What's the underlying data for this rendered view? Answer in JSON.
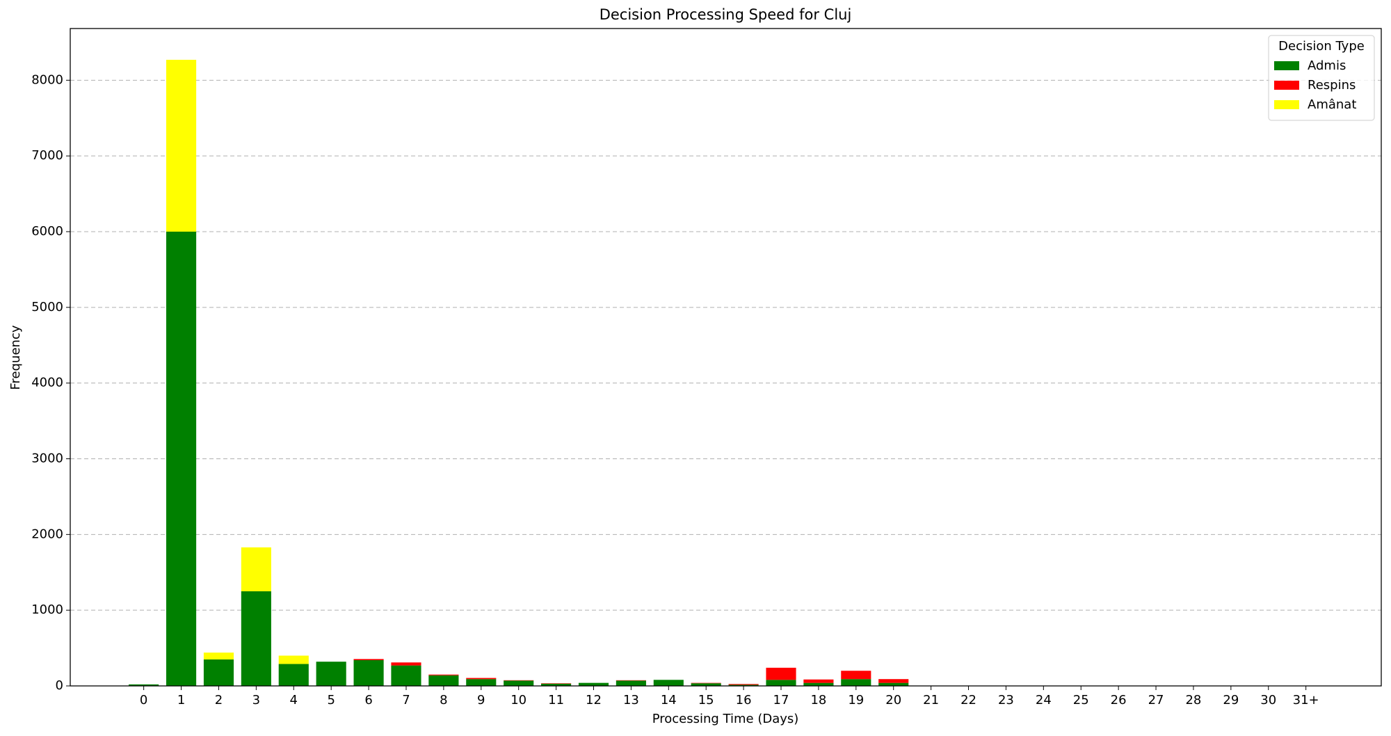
{
  "chart_data": {
    "type": "stacked_bar",
    "title": "Decision Processing Speed for Cluj",
    "x_label": "Processing Time (Days)",
    "y_label": "Frequency",
    "categories": [
      "0",
      "1",
      "2",
      "3",
      "4",
      "5",
      "6",
      "7",
      "8",
      "9",
      "10",
      "11",
      "12",
      "13",
      "14",
      "15",
      "16",
      "17",
      "18",
      "19",
      "20",
      "21",
      "22",
      "23",
      "24",
      "25",
      "26",
      "27",
      "28",
      "29",
      "30",
      "31+"
    ],
    "series": [
      {
        "name": "Admis",
        "color": "#008000",
        "values": [
          20,
          6000,
          350,
          1250,
          290,
          320,
          340,
          270,
          140,
          90,
          70,
          30,
          40,
          70,
          80,
          35,
          15,
          80,
          40,
          90,
          40,
          0,
          0,
          0,
          0,
          0,
          0,
          0,
          0,
          0,
          0,
          0
        ]
      },
      {
        "name": "Respins",
        "color": "#ff0000",
        "values": [
          0,
          0,
          0,
          0,
          0,
          0,
          15,
          40,
          10,
          15,
          5,
          5,
          0,
          5,
          0,
          5,
          10,
          160,
          45,
          110,
          50,
          0,
          0,
          0,
          0,
          0,
          0,
          0,
          0,
          0,
          0,
          0
        ]
      },
      {
        "name": "Amânat",
        "color": "#ffff00",
        "values": [
          0,
          2270,
          90,
          580,
          110,
          0,
          0,
          0,
          0,
          0,
          0,
          0,
          0,
          0,
          0,
          0,
          0,
          0,
          0,
          0,
          0,
          0,
          0,
          0,
          0,
          0,
          0,
          0,
          0,
          0,
          0,
          0
        ]
      }
    ],
    "ylim": [
      0,
      8683
    ],
    "yticks": [
      0,
      1000,
      2000,
      3000,
      4000,
      5000,
      6000,
      7000,
      8000
    ],
    "grid": true,
    "legend_title": "Decision Type",
    "legend_position": "upper right"
  }
}
